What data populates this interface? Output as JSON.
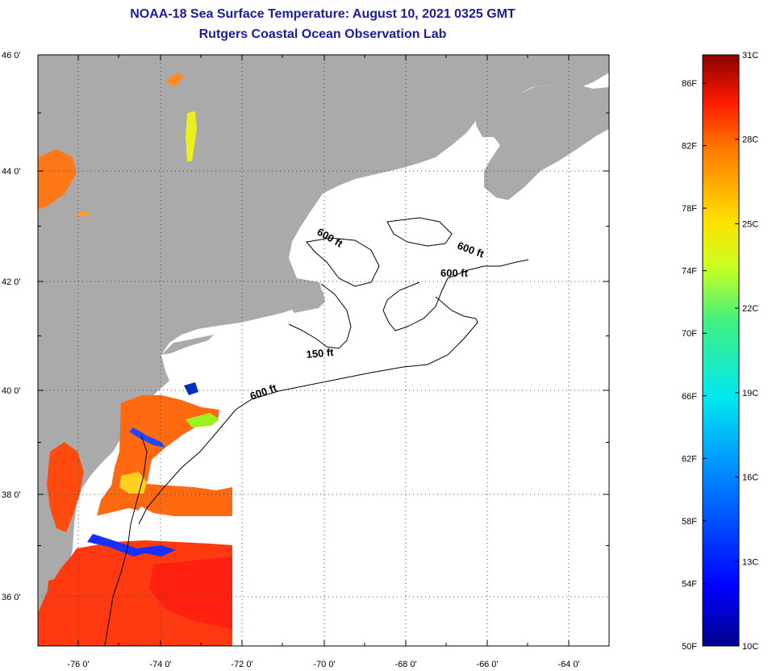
{
  "header": {
    "title": "NOAA-18 Sea Surface Temperature:  August 10, 2021 0325 GMT",
    "subtitle": "Rutgers Coastal Ocean Observation Lab"
  },
  "axes": {
    "lat_labels": [
      "46 0'",
      "44 0'",
      "42 0'",
      "40 0'",
      "38 0'",
      "36 0'"
    ],
    "lon_labels": [
      "-76 0'",
      "-74 0'",
      "-72 0'",
      "-70 0'",
      "-68 0'",
      "-66 0'",
      "-64 0'"
    ]
  },
  "contours": {
    "label_600_a": "600 ft",
    "label_600_b": "600 ft",
    "label_600_c": "600 ft",
    "label_150": "150 ft",
    "label_600_d": "600 ft"
  },
  "colorbar": {
    "f_labels": [
      "86F",
      "82F",
      "78F",
      "74F",
      "70F",
      "66F",
      "62F",
      "58F",
      "54F",
      "50F"
    ],
    "c_labels": [
      "31C",
      "28C",
      "25C",
      "22C",
      "19C",
      "16C",
      "13C",
      "10C"
    ]
  },
  "colors": {
    "land": "#aaaaaa",
    "title": "#1c1c9c",
    "warm": "#ff5a10",
    "hot": "#ff2a10",
    "cool": "#0018ff"
  }
}
